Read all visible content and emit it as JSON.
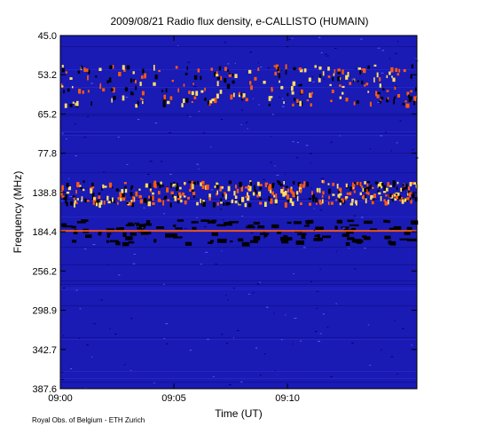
{
  "chart_data": {
    "type": "heatmap",
    "title": "2009/08/21  Radio flux density, e-CALLISTO (HUMAIN)",
    "xlabel": "Time (UT)",
    "ylabel": "Frequency (MHz)",
    "x_ticks": [
      "09:00",
      "09:05",
      "09:10"
    ],
    "x_tick_minutes": [
      0,
      5,
      10
    ],
    "x_range_minutes": [
      0,
      15.7
    ],
    "y_ticks": [
      "45.0",
      "53.2",
      "65.2",
      "77.8",
      "138.8",
      "184.4",
      "256.2",
      "298.9",
      "342.7",
      "387.6"
    ],
    "colors": {
      "background": "#1a1ab4",
      "hot": "#ffe060",
      "warm": "#ff5a10",
      "dark": "#000000"
    },
    "bands": [
      {
        "name": "lower-frequency band",
        "from_tick": 1,
        "to_tick": 2,
        "level": "medium"
      },
      {
        "name": "strong band",
        "at_tick": 4,
        "level": "high"
      },
      {
        "name": "dark band",
        "at_tick": 5,
        "level": "dark"
      }
    ]
  },
  "credit": "Royal Obs. of Belgium - ETH Zurich"
}
